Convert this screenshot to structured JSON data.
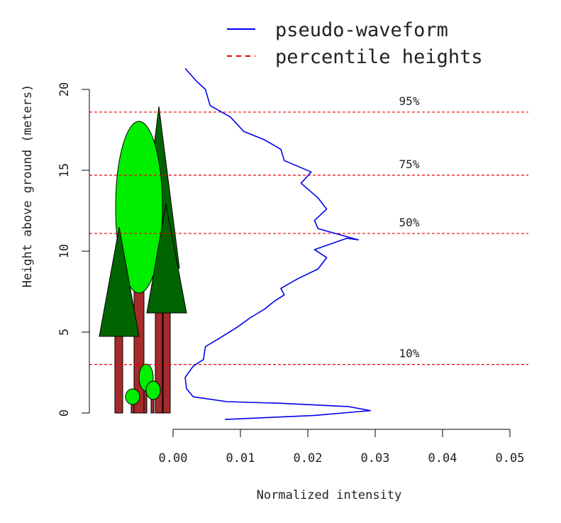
{
  "chart_data": {
    "type": "line",
    "title": "",
    "xlabel": "Normalized intensity",
    "ylabel": "Height above ground (meters)",
    "xlim": [
      0.0,
      0.05
    ],
    "ylim": [
      0,
      20
    ],
    "x_ticks": [
      0.0,
      0.01,
      0.02,
      0.03,
      0.04,
      0.05
    ],
    "x_tick_labels": [
      "0.00",
      "0.01",
      "0.02",
      "0.03",
      "0.04",
      "0.05"
    ],
    "y_ticks": [
      0,
      5,
      10,
      15,
      20
    ],
    "y_tick_labels": [
      "0",
      "5",
      "10",
      "15",
      "20"
    ],
    "legend": {
      "position": "top-right",
      "entries": [
        "pseudo-waveform",
        "percentile heights"
      ]
    },
    "series": [
      {
        "name": "pseudo-waveform",
        "color": "#0000ee",
        "style": "solid",
        "points": [
          [
            0.0077,
            -0.4
          ],
          [
            0.021,
            -0.15
          ],
          [
            0.0293,
            0.15
          ],
          [
            0.026,
            0.4
          ],
          [
            0.016,
            0.6
          ],
          [
            0.008,
            0.7
          ],
          [
            0.003,
            1.0
          ],
          [
            0.002,
            1.5
          ],
          [
            0.0018,
            2.2
          ],
          [
            0.003,
            2.9
          ],
          [
            0.0045,
            3.3
          ],
          [
            0.0048,
            4.1
          ],
          [
            0.0072,
            4.7
          ],
          [
            0.0095,
            5.3
          ],
          [
            0.0115,
            5.9
          ],
          [
            0.0135,
            6.4
          ],
          [
            0.015,
            6.9
          ],
          [
            0.0165,
            7.3
          ],
          [
            0.016,
            7.7
          ],
          [
            0.0185,
            8.3
          ],
          [
            0.0215,
            8.9
          ],
          [
            0.0228,
            9.6
          ],
          [
            0.021,
            10.1
          ],
          [
            0.0258,
            10.8
          ],
          [
            0.0275,
            10.7
          ],
          [
            0.0215,
            11.4
          ],
          [
            0.021,
            11.9
          ],
          [
            0.0228,
            12.6
          ],
          [
            0.0215,
            13.3
          ],
          [
            0.019,
            14.2
          ],
          [
            0.0205,
            14.9
          ],
          [
            0.0165,
            15.6
          ],
          [
            0.016,
            16.3
          ],
          [
            0.0135,
            16.9
          ],
          [
            0.0105,
            17.4
          ],
          [
            0.0085,
            18.3
          ],
          [
            0.0055,
            19.0
          ],
          [
            0.0048,
            20.0
          ],
          [
            0.0035,
            20.5
          ],
          [
            0.0018,
            21.3
          ]
        ]
      }
    ],
    "percentile_heights": [
      {
        "label": "10%",
        "height": 3.0
      },
      {
        "label": "50%",
        "height": 11.1
      },
      {
        "label": "75%",
        "height": 14.7
      },
      {
        "label": "95%",
        "height": 18.6
      }
    ],
    "percentile_color": "#ee0000",
    "tree_colors": {
      "trunk": "#a52a2a",
      "conifer": "#006400",
      "broadleaf": "#00ee00"
    }
  }
}
